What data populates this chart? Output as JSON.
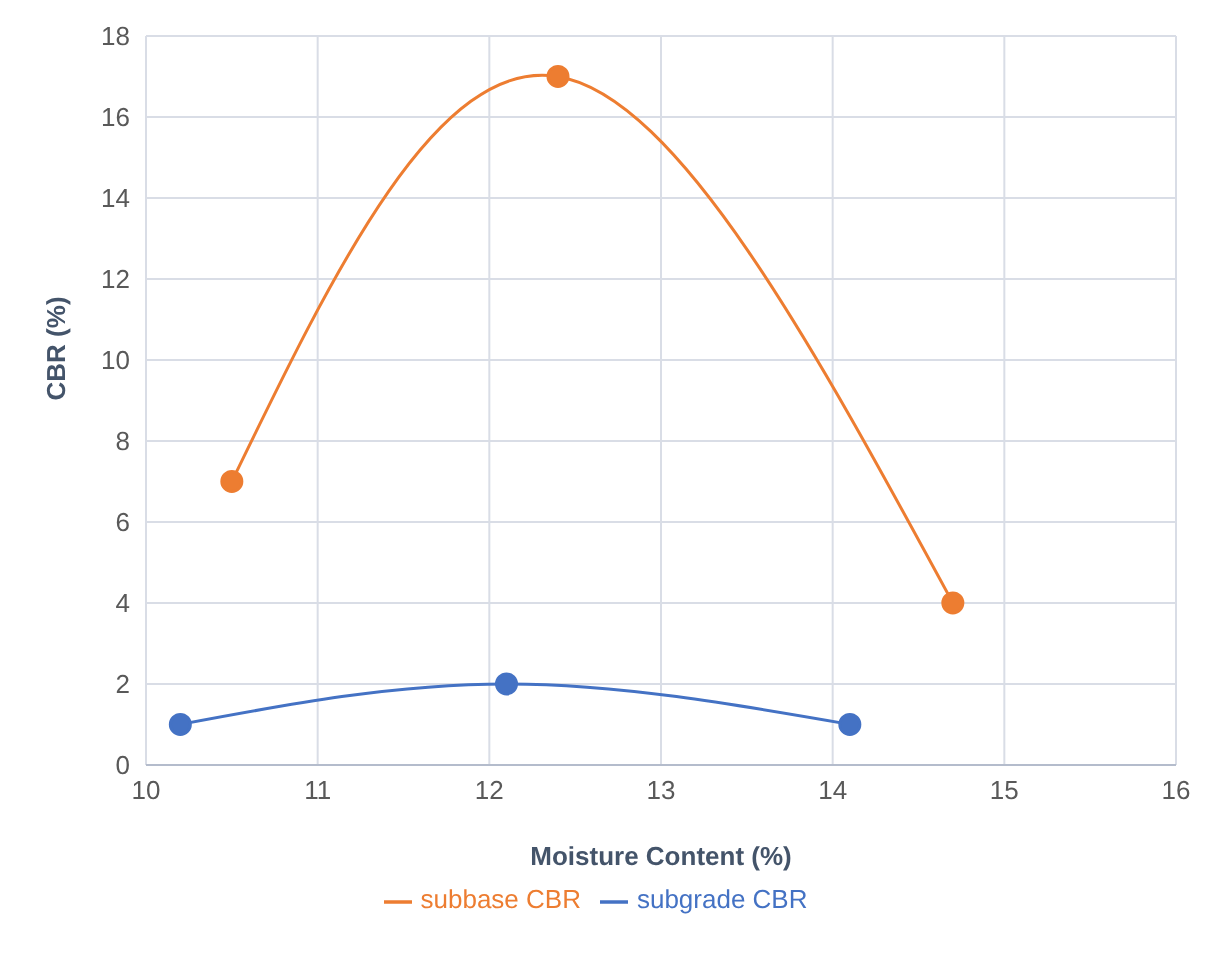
{
  "chart_data": {
    "type": "line",
    "xlabel": "Moisture Content (%)",
    "ylabel": "CBR (%)",
    "xlim": [
      10,
      16
    ],
    "xticks": [
      10,
      11,
      12,
      13,
      14,
      15,
      16
    ],
    "ylim": [
      0,
      18
    ],
    "yticks": [
      0,
      2,
      4,
      6,
      8,
      10,
      12,
      14,
      16,
      18
    ],
    "series": [
      {
        "name": "subbase CBR",
        "color": "#ed7d31",
        "x": [
          10.5,
          12.4,
          14.7
        ],
        "values": [
          7,
          17,
          4
        ]
      },
      {
        "name": "subgrade CBR",
        "color": "#4472c4",
        "x": [
          10.2,
          12.1,
          14.1
        ],
        "values": [
          1,
          2,
          1
        ]
      }
    ],
    "grid": true,
    "legend": "bottom",
    "marker": "circle",
    "line_style": "solid"
  }
}
